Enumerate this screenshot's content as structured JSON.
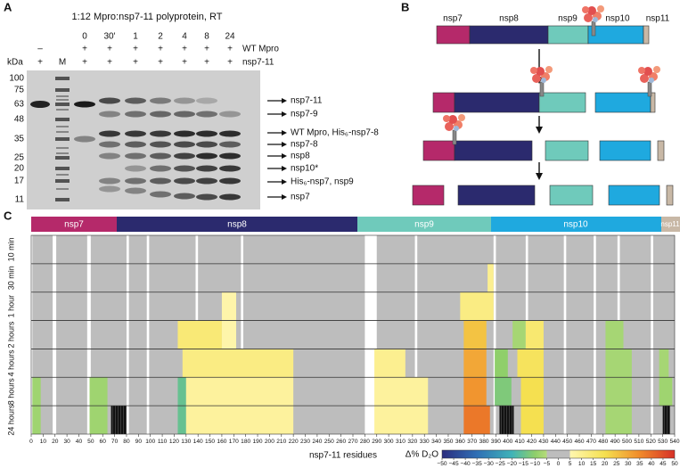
{
  "panel_labels": [
    "A",
    "B",
    "C"
  ],
  "gel": {
    "title": "1:12 Mpro:nsp7-11 polyprotein, RT",
    "time_labels": [
      "0",
      "30'",
      "1",
      "2",
      "4",
      "8",
      "24"
    ],
    "mpro_signs": [
      "–",
      "+",
      "+",
      "+",
      "+",
      "+",
      "+",
      "+"
    ],
    "mpro_label": "WT Mpro",
    "kda": "kDa",
    "substrate_signs": [
      "+",
      "M",
      "+",
      "+",
      "+",
      "+",
      "+",
      "+",
      "+"
    ],
    "substrate_label": "nsp7-11",
    "markers": [
      "100",
      "75",
      "63",
      "48",
      "35",
      "25",
      "20",
      "17",
      "11"
    ],
    "bands": [
      "nsp7-11",
      "nsp7-9",
      "WT Mpro, His₆-nsp7-8",
      "nsp7-8",
      "nsp8",
      "nsp10*",
      "His₆-nsp7, nsp9",
      "nsp7"
    ]
  },
  "schematic": {
    "domains": [
      "nsp7",
      "nsp8",
      "nsp9",
      "nsp10",
      "nsp11"
    ]
  },
  "chart_data": {
    "type": "heatmap",
    "domains": [
      "nsp7",
      "nsp8",
      "nsp9",
      "nsp10",
      "nsp11"
    ],
    "rows": [
      "10 min",
      "30 min",
      "1 hour",
      "2 hours",
      "4 hours",
      "8 hours",
      "24 hours"
    ],
    "xlabel": "nsp7-11 residues",
    "xlim": [
      0,
      540
    ],
    "xticks": [
      0,
      10,
      20,
      30,
      40,
      50,
      60,
      70,
      80,
      90,
      100,
      110,
      120,
      130,
      140,
      150,
      160,
      170,
      180,
      190,
      200,
      210,
      220,
      230,
      240,
      250,
      260,
      270,
      280,
      290,
      300,
      310,
      320,
      330,
      340,
      350,
      360,
      370,
      380,
      390,
      400,
      410,
      420,
      430,
      440,
      450,
      460,
      470,
      480,
      490,
      500,
      510,
      520,
      530,
      540
    ],
    "coverage": [
      [
        1,
        18
      ],
      [
        21,
        47
      ],
      [
        50,
        80
      ],
      [
        82,
        97
      ],
      [
        99,
        138
      ],
      [
        140,
        176
      ],
      [
        178,
        280
      ],
      [
        290,
        322
      ],
      [
        324,
        388
      ],
      [
        390,
        415
      ],
      [
        417,
        447
      ],
      [
        449,
        472
      ],
      [
        474,
        492
      ],
      [
        494,
        520
      ],
      [
        522,
        540
      ]
    ],
    "changes": [
      {
        "row": 1,
        "start": 383,
        "end": 388,
        "value": 10
      },
      {
        "row": 2,
        "start": 160,
        "end": 172,
        "value": 6
      },
      {
        "row": 2,
        "start": 360,
        "end": 388,
        "value": 12
      },
      {
        "row": 3,
        "start": 123,
        "end": 160,
        "value": 14
      },
      {
        "row": 3,
        "start": 160,
        "end": 172,
        "value": 6
      },
      {
        "row": 3,
        "start": 363,
        "end": 382,
        "value": 25
      },
      {
        "row": 3,
        "start": 404,
        "end": 415,
        "value": -7
      },
      {
        "row": 3,
        "start": 415,
        "end": 430,
        "value": 15
      },
      {
        "row": 3,
        "start": 482,
        "end": 497,
        "value": -7
      },
      {
        "row": 4,
        "start": 127,
        "end": 220,
        "value": 12
      },
      {
        "row": 4,
        "start": 288,
        "end": 314,
        "value": 10
      },
      {
        "row": 4,
        "start": 363,
        "end": 382,
        "value": 30
      },
      {
        "row": 4,
        "start": 389,
        "end": 400,
        "value": -10
      },
      {
        "row": 4,
        "start": 408,
        "end": 430,
        "value": 18
      },
      {
        "row": 4,
        "start": 482,
        "end": 504,
        "value": -7
      },
      {
        "row": 4,
        "start": 527,
        "end": 535,
        "value": -7
      },
      {
        "row": 5,
        "start": 1,
        "end": 8,
        "value": -8
      },
      {
        "row": 5,
        "start": 49,
        "end": 64,
        "value": -8
      },
      {
        "row": 5,
        "start": 123,
        "end": 130,
        "value": -15
      },
      {
        "row": 5,
        "start": 130,
        "end": 220,
        "value": 8
      },
      {
        "row": 5,
        "start": 288,
        "end": 333,
        "value": 8
      },
      {
        "row": 5,
        "start": 363,
        "end": 382,
        "value": 33
      },
      {
        "row": 5,
        "start": 389,
        "end": 403,
        "value": -12
      },
      {
        "row": 5,
        "start": 411,
        "end": 430,
        "value": 20
      },
      {
        "row": 5,
        "start": 482,
        "end": 504,
        "value": -7
      },
      {
        "row": 5,
        "start": 527,
        "end": 538,
        "value": -8
      },
      {
        "row": 6,
        "start": 1,
        "end": 8,
        "value": -8
      },
      {
        "row": 6,
        "start": 49,
        "end": 64,
        "value": -8
      },
      {
        "row": 6,
        "start": 123,
        "end": 130,
        "value": -15
      },
      {
        "row": 6,
        "start": 130,
        "end": 220,
        "value": 8
      },
      {
        "row": 6,
        "start": 288,
        "end": 333,
        "value": 8
      },
      {
        "row": 6,
        "start": 363,
        "end": 385,
        "value": 38
      },
      {
        "row": 6,
        "start": 411,
        "end": 430,
        "value": 20
      },
      {
        "row": 6,
        "start": 482,
        "end": 504,
        "value": -7
      }
    ],
    "masked": [
      {
        "row": 6,
        "start": 67,
        "end": 80
      },
      {
        "row": 6,
        "start": 393,
        "end": 405
      },
      {
        "row": 6,
        "start": 530,
        "end": 536
      }
    ],
    "colorbar_label": "Δ% D₂O",
    "colorbar_lim": [
      -50,
      50
    ],
    "colorbar_ticks": [
      {
        "value": -50,
        "label": "−50"
      },
      {
        "value": -45,
        "label": "−45"
      },
      {
        "value": -40,
        "label": "−40"
      },
      {
        "value": -35,
        "label": "−35"
      },
      {
        "value": -30,
        "label": "−30"
      },
      {
        "value": -25,
        "label": "−25"
      },
      {
        "value": -20,
        "label": "−20"
      },
      {
        "value": -15,
        "label": "−15"
      },
      {
        "value": -10,
        "label": "−10"
      },
      {
        "value": -5,
        "label": "−5"
      },
      0,
      5,
      10,
      15,
      20,
      25,
      30,
      35,
      40,
      45,
      50
    ],
    "colormap": [
      [
        -50,
        "#2b2d7f"
      ],
      [
        -35,
        "#2f6fb5"
      ],
      [
        -20,
        "#3fb3b8"
      ],
      [
        -10,
        "#8fcf6a"
      ],
      [
        -5,
        "#b6db7a"
      ],
      [
        -5,
        "#bdbdbd"
      ],
      [
        5,
        "#bdbdbd"
      ],
      [
        5,
        "#fff7b0"
      ],
      [
        20,
        "#f5e050"
      ],
      [
        35,
        "#f08a2a"
      ],
      [
        50,
        "#d73027"
      ]
    ],
    "gray": "#bdbdbd",
    "mask_color": "#111111"
  }
}
